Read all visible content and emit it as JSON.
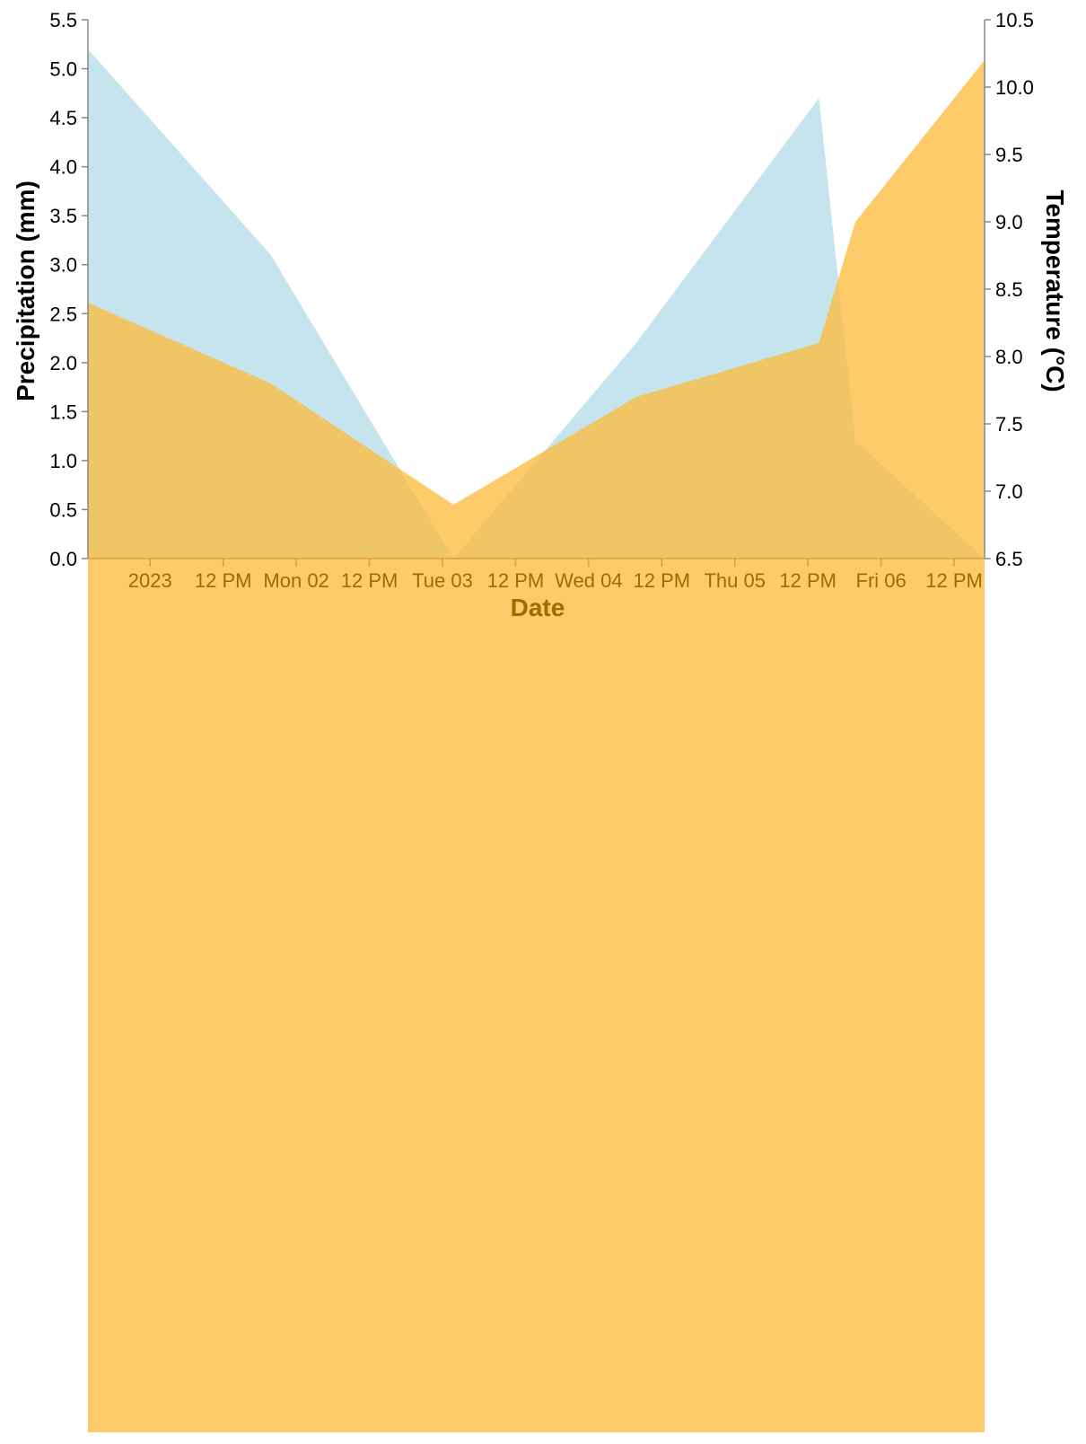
{
  "chart_data": {
    "type": "area",
    "x_domain": [
      "2022-12-31T13:48",
      "2023-01-06T17:00"
    ],
    "x_ticks": [
      {
        "t": "2023-01-01T00:00",
        "label": "2023"
      },
      {
        "t": "2023-01-01T12:00",
        "label": "12 PM"
      },
      {
        "t": "2023-01-02T00:00",
        "label": "Mon 02"
      },
      {
        "t": "2023-01-02T12:00",
        "label": "12 PM"
      },
      {
        "t": "2023-01-03T00:00",
        "label": "Tue 03"
      },
      {
        "t": "2023-01-03T12:00",
        "label": "12 PM"
      },
      {
        "t": "2023-01-04T00:00",
        "label": "Wed 04"
      },
      {
        "t": "2023-01-04T12:00",
        "label": "12 PM"
      },
      {
        "t": "2023-01-05T00:00",
        "label": "Thu 05"
      },
      {
        "t": "2023-01-05T12:00",
        "label": "12 PM"
      },
      {
        "t": "2023-01-06T00:00",
        "label": "Fri 06"
      },
      {
        "t": "2023-01-06T12:00",
        "label": "12 PM"
      }
    ],
    "xlabel": "Date",
    "y_left": {
      "label": "Precipitation (mm)",
      "ylim": [
        0,
        5.5
      ],
      "ticks": [
        "0.0",
        "0.5",
        "1.0",
        "1.5",
        "2.0",
        "2.5",
        "3.0",
        "3.5",
        "4.0",
        "4.5",
        "5.0",
        "5.5"
      ]
    },
    "y_right": {
      "label": "Temperature (°C)",
      "ylim": [
        6.5,
        10.5
      ],
      "ticks": [
        "6.5",
        "7.0",
        "7.5",
        "8.0",
        "8.5",
        "9.0",
        "9.5",
        "10.0",
        "10.5"
      ]
    },
    "series": [
      {
        "axis": "left",
        "color": "#add8e6",
        "points": [
          {
            "x": "2022-12-31T13:48",
            "y": 5.2
          },
          {
            "x": "2023-01-01T19:48",
            "y": 3.1
          },
          {
            "x": "2023-01-03T01:48",
            "y": 0.0
          },
          {
            "x": "2023-01-04T07:48",
            "y": 2.2
          },
          {
            "x": "2023-01-05T13:48",
            "y": 4.7
          },
          {
            "x": "2023-01-05T19:48",
            "y": 1.2
          },
          {
            "x": "2023-01-06T17:00",
            "y": 0.0
          }
        ]
      },
      {
        "axis": "right",
        "color": "#fdbc40",
        "points": [
          {
            "x": "2022-12-31T13:48",
            "y": 8.4
          },
          {
            "x": "2023-01-01T19:48",
            "y": 7.8
          },
          {
            "x": "2023-01-03T01:48",
            "y": 6.9
          },
          {
            "x": "2023-01-04T07:48",
            "y": 7.7
          },
          {
            "x": "2023-01-05T13:48",
            "y": 8.1
          },
          {
            "x": "2023-01-05T19:48",
            "y": 9.0
          },
          {
            "x": "2023-01-06T17:00",
            "y": 10.2
          }
        ]
      }
    ],
    "colors": {
      "left_axis": "#000000",
      "right_axis": "#000000",
      "x_axis": "#a16b00"
    }
  }
}
